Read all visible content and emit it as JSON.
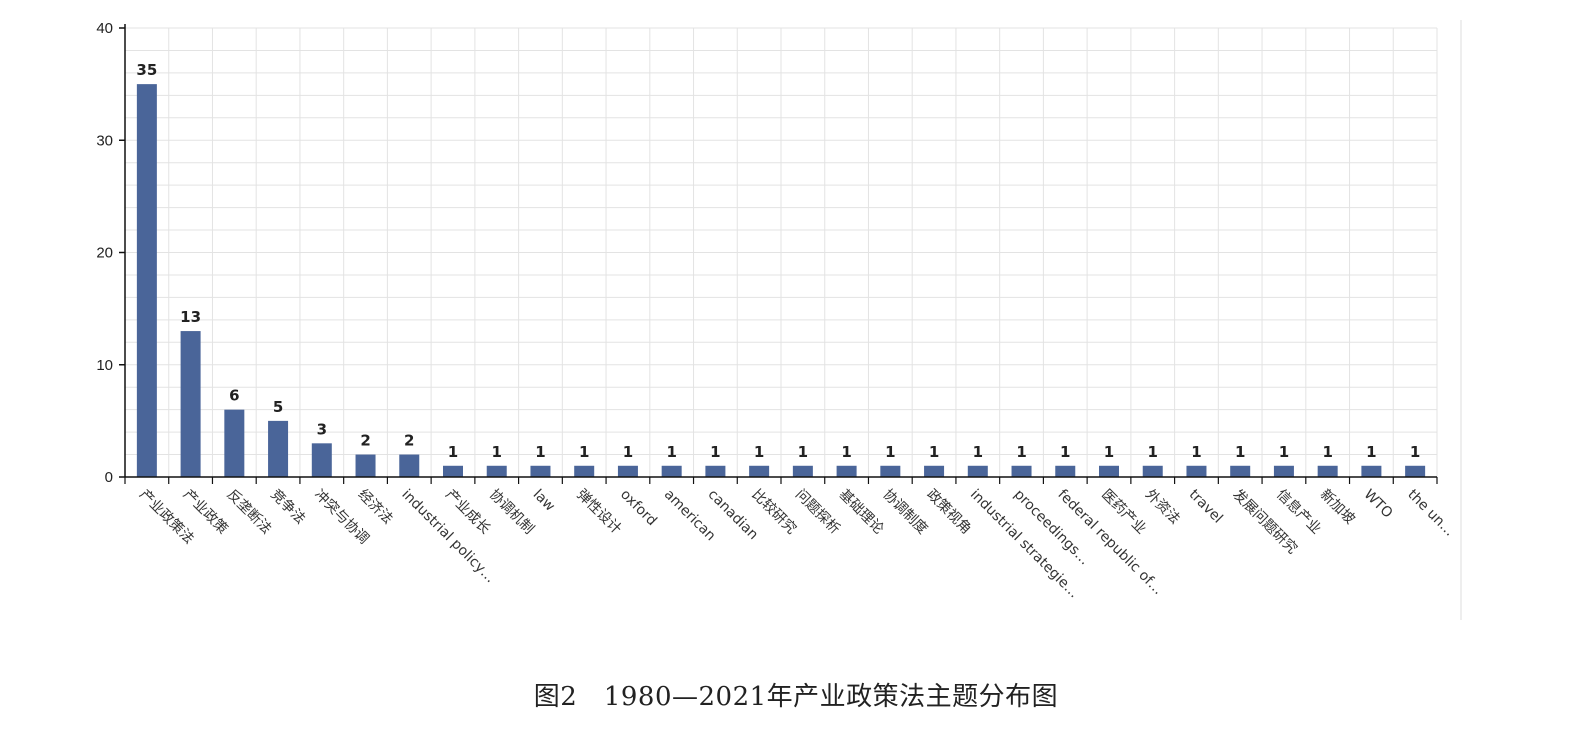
{
  "caption": "图2　1980—2021年产业政策法主题分布图",
  "chart_data": {
    "type": "bar",
    "title": "",
    "xlabel": "",
    "ylabel": "",
    "ylim": [
      0,
      40
    ],
    "yticks": [
      0,
      10,
      20,
      30,
      40
    ],
    "grid": true,
    "color": "#4a6599",
    "categories": [
      "产业政策法",
      "产业政策",
      "反垄断法",
      "竞争法",
      "冲突与协调",
      "经济法",
      "industrial policy…",
      "产业成长",
      "协调机制",
      "law",
      "弹性设计",
      "oxford",
      "american",
      "canadian",
      "比较研究",
      "问题探析",
      "基础理论",
      "协调制度",
      "政策视角",
      "industrial strategie…",
      "proceedings…",
      "federal republic of…",
      "医药产业",
      "外资法",
      "travel",
      "发展问题研究",
      "信息产业",
      "新加坡",
      "WTO",
      "the un…"
    ],
    "values": [
      35,
      13,
      6,
      5,
      3,
      2,
      2,
      1,
      1,
      1,
      1,
      1,
      1,
      1,
      1,
      1,
      1,
      1,
      1,
      1,
      1,
      1,
      1,
      1,
      1,
      1,
      1,
      1,
      1,
      1
    ]
  }
}
